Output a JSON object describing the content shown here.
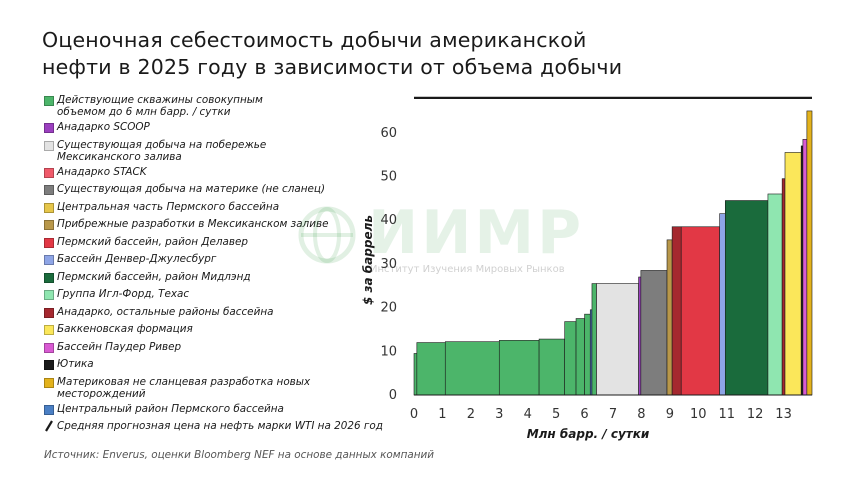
{
  "title_lines": [
    "Оценочная себестоимость добычи американской",
    "нефти в 2025 году в зависимости от объема добычи"
  ],
  "legend": [
    {
      "label_lines": [
        "Действующие скважины совокупным",
        "объемом до 6 млн барр. / сутки"
      ],
      "color": "#4cb56a",
      "kind": "swatch"
    },
    {
      "label_lines": [
        "Анадарко SCOOP"
      ],
      "color": "#9b3fbf",
      "kind": "swatch"
    },
    {
      "label_lines": [
        "Существующая добыча на побережье",
        "Мексиканского залива"
      ],
      "color": "#e3e3e3",
      "kind": "swatch"
    },
    {
      "label_lines": [
        "Анадарко STACK"
      ],
      "color": "#f05a6a",
      "kind": "swatch"
    },
    {
      "label_lines": [
        "Существующая добыча на материке (не сланец)"
      ],
      "color": "#7d7d7d",
      "kind": "swatch"
    },
    {
      "label_lines": [
        "Центральная часть Пермского бассейна"
      ],
      "color": "#e6c64a",
      "kind": "swatch"
    },
    {
      "label_lines": [
        "Прибрежные разработки в Мексиканском заливе"
      ],
      "color": "#b8974a",
      "kind": "swatch"
    },
    {
      "label_lines": [
        "Пермский бассейн, район Делавер"
      ],
      "color": "#e23845",
      "kind": "swatch"
    },
    {
      "label_lines": [
        "Бассейн Денвер-Джулесбург"
      ],
      "color": "#8ea5e6",
      "kind": "swatch"
    },
    {
      "label_lines": [
        "Пермский бассейн, район Мидлэнд"
      ],
      "color": "#1a6b3c",
      "kind": "swatch"
    },
    {
      "label_lines": [
        "Группа Игл-Форд, Техас"
      ],
      "color": "#8fe6b0",
      "kind": "swatch"
    },
    {
      "label_lines": [
        "Анадарко, остальные районы бассейна"
      ],
      "color": "#a5282f",
      "kind": "swatch"
    },
    {
      "label_lines": [
        "Баккеновская формация"
      ],
      "color": "#fbe75a",
      "kind": "swatch"
    },
    {
      "label_lines": [
        "Бассейн Паудер Ривер"
      ],
      "color": "#d85ad2",
      "kind": "swatch"
    },
    {
      "label_lines": [
        "Ютика"
      ],
      "color": "#1a1a1a",
      "kind": "swatch"
    },
    {
      "label_lines": [
        "Материковая не сланцевая разработка новых",
        "месторождений"
      ],
      "color": "#e3b21c",
      "kind": "swatch"
    },
    {
      "label_lines": [
        "Центральный район Пермского бассейна"
      ],
      "color": "#4a7fc4",
      "kind": "swatch"
    },
    {
      "label_lines": [
        "Средняя прогнозная цена на нефть марки WTI на 2026 год"
      ],
      "color": "#1a1a1a",
      "kind": "line"
    }
  ],
  "watermark": {
    "text": "ИИМР",
    "sub": "Институт Изучения Мировых Рынков"
  },
  "source": "Источник: Enverus, оценки Bloomberg NEF на основе данных компаний",
  "chart_data": {
    "type": "area",
    "title": "Оценочная себестоимость добычи американской нефти в 2025 году в зависимости от объема добычи",
    "xlabel": "Млн барр. / сутки",
    "ylabel": "$ за баррель",
    "xlim": [
      0,
      14
    ],
    "ylim": [
      0,
      70
    ],
    "x_ticks": [
      0,
      1,
      2,
      3,
      4,
      5,
      6,
      7,
      8,
      9,
      10,
      11,
      12,
      13
    ],
    "y_ticks": [
      0,
      10,
      20,
      30,
      40,
      50,
      60
    ],
    "grid": false,
    "legend_position": "left",
    "reference_line": {
      "name": "Средняя прогнозная цена на нефть марки WTI на 2026 год",
      "value": 68
    },
    "steps": [
      {
        "series": "Действующие скважины совокупным объемом до 6 млн барр. / сутки",
        "x0": 0.0,
        "x1": 0.1,
        "y": 9.5,
        "color": "#4cb56a"
      },
      {
        "series": "Действующие скважины совокупным объемом до 6 млн барр. / сутки",
        "x0": 0.1,
        "x1": 1.1,
        "y": 12.0,
        "color": "#4cb56a"
      },
      {
        "series": "Действующие скважины совокупным объемом до 6 млн барр. / сутки",
        "x0": 1.1,
        "x1": 3.0,
        "y": 12.2,
        "color": "#4cb56a"
      },
      {
        "series": "Действующие скважины совокупным объемом до 6 млн барр. / сутки",
        "x0": 3.0,
        "x1": 4.4,
        "y": 12.5,
        "color": "#4cb56a"
      },
      {
        "series": "Действующие скважины совокупным объемом до 6 млн барр. / сутки",
        "x0": 4.4,
        "x1": 5.3,
        "y": 12.8,
        "color": "#4cb56a"
      },
      {
        "series": "Действующие скважины совокупным объемом до 6 млн барр. / сутки",
        "x0": 5.3,
        "x1": 5.7,
        "y": 16.8,
        "color": "#4cb56a"
      },
      {
        "series": "Действующие скважины совокупным объемом до 6 млн барр. / сутки",
        "x0": 5.7,
        "x1": 6.0,
        "y": 17.5,
        "color": "#4cb56a"
      },
      {
        "series": "Действующие скважины совокупным объемом до 6 млн барр. / сутки",
        "x0": 6.0,
        "x1": 6.2,
        "y": 18.5,
        "color": "#4cb56a"
      },
      {
        "series": "Центральный район Пермского бассейна",
        "x0": 6.2,
        "x1": 6.26,
        "y": 19.5,
        "color": "#4a7fc4"
      },
      {
        "series": "Действующие скважины совокупным объемом до 6 млн барр. / сутки",
        "x0": 6.26,
        "x1": 6.42,
        "y": 25.5,
        "color": "#4cb56a"
      },
      {
        "series": "Существующая добыча на побережье Мексиканского залива",
        "x0": 6.42,
        "x1": 7.9,
        "y": 25.5,
        "color": "#e3e3e3"
      },
      {
        "series": "Анадарко SCOOP",
        "x0": 7.9,
        "x1": 7.98,
        "y": 27.0,
        "color": "#9b3fbf"
      },
      {
        "series": "Существующая добыча на материке (не сланец)",
        "x0": 7.98,
        "x1": 8.9,
        "y": 28.5,
        "color": "#7d7d7d"
      },
      {
        "series": "Прибрежные разработки в Мексиканском заливе",
        "x0": 8.9,
        "x1": 9.08,
        "y": 35.5,
        "color": "#b8974a"
      },
      {
        "series": "Пермский бассейн, район Делавер",
        "x0": 9.08,
        "x1": 9.4,
        "y": 38.5,
        "color": "#a5282f"
      },
      {
        "series": "Пермский бассейн, район Делавер",
        "x0": 9.4,
        "x1": 10.75,
        "y": 38.5,
        "color": "#e23845"
      },
      {
        "series": "Бассейн Денвер-Джулесбург",
        "x0": 10.75,
        "x1": 10.95,
        "y": 41.5,
        "color": "#8ea5e6"
      },
      {
        "series": "Пермский бассейн, район Мидлэнд",
        "x0": 10.95,
        "x1": 12.45,
        "y": 44.5,
        "color": "#1a6b3c"
      },
      {
        "series": "Группа Игл-Форд, Техас",
        "x0": 12.45,
        "x1": 12.95,
        "y": 46.0,
        "color": "#8fe6b0"
      },
      {
        "series": "Анадарко, остальные районы бассейна",
        "x0": 12.95,
        "x1": 13.05,
        "y": 49.5,
        "color": "#a5282f"
      },
      {
        "series": "Баккеновская формация",
        "x0": 13.05,
        "x1": 13.62,
        "y": 55.5,
        "color": "#fbe75a"
      },
      {
        "series": "Ютика",
        "x0": 13.62,
        "x1": 13.68,
        "y": 57.0,
        "color": "#1a1a1a"
      },
      {
        "series": "Бассейн Паудер Ривер",
        "x0": 13.68,
        "x1": 13.82,
        "y": 58.5,
        "color": "#d85ad2"
      },
      {
        "series": "Материковая не сланцевая разработка новых месторождений",
        "x0": 13.82,
        "x1": 14.0,
        "y": 65.0,
        "color": "#e3b21c"
      }
    ]
  }
}
